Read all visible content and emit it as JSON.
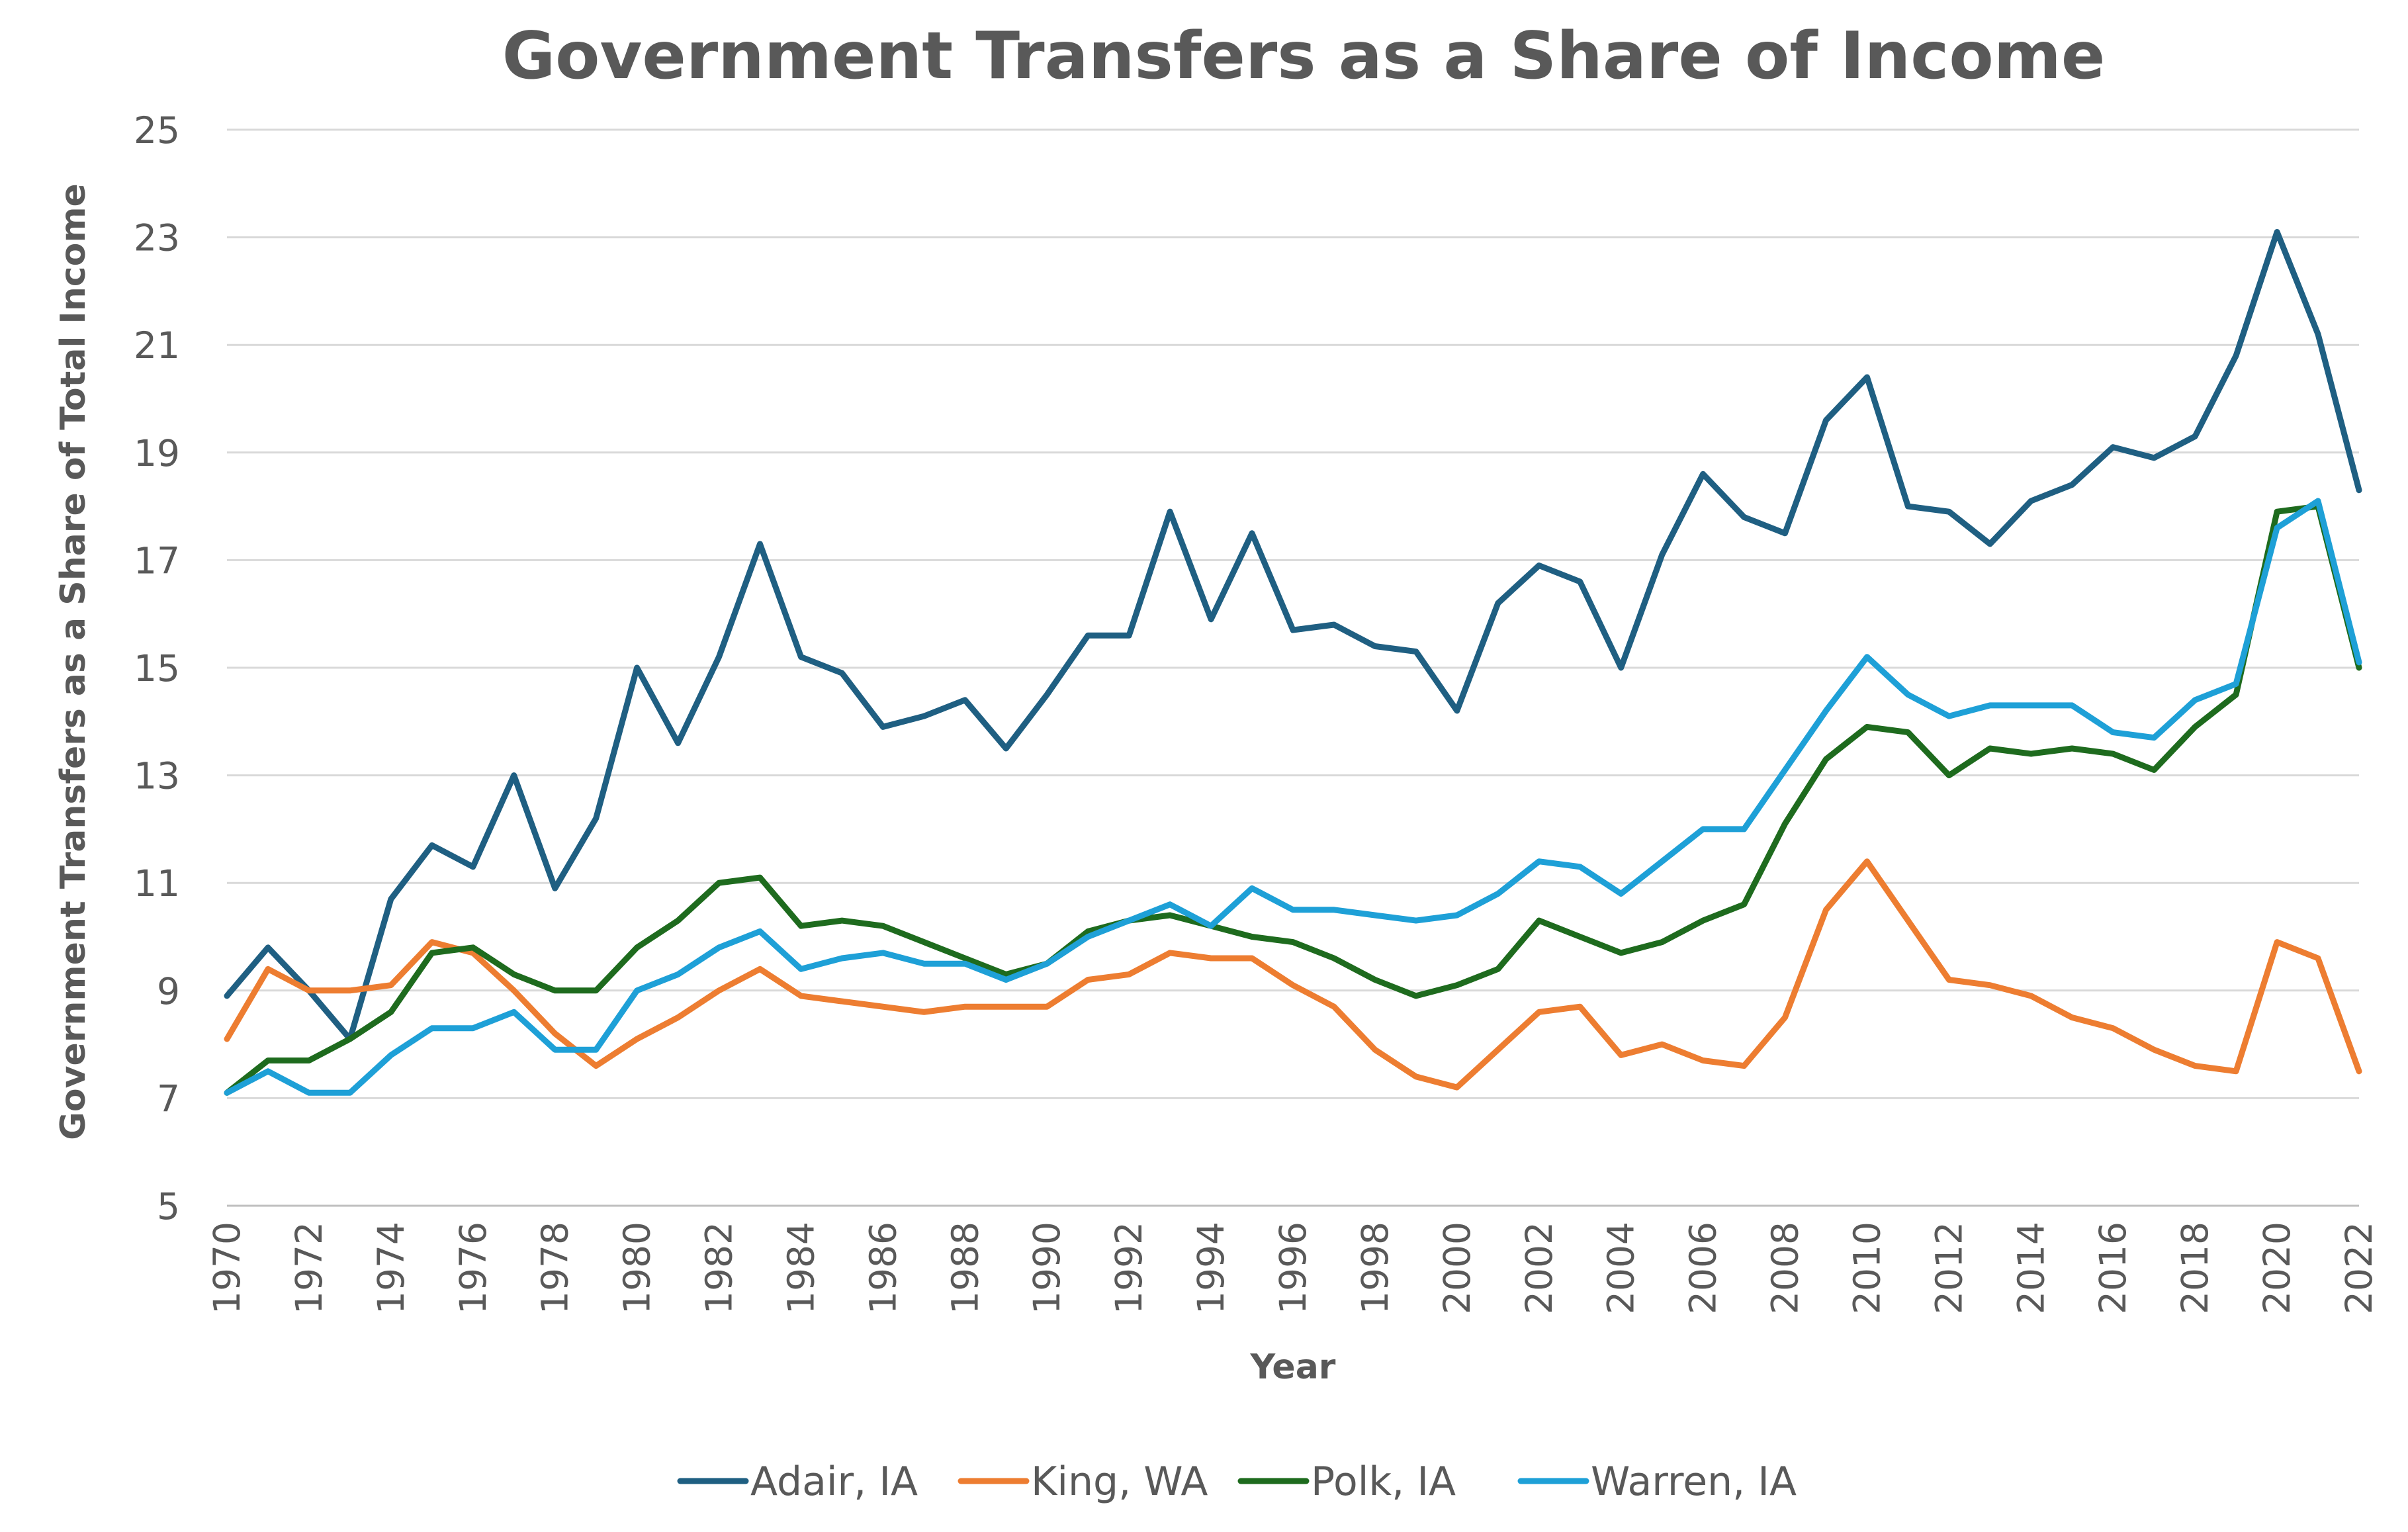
{
  "chart_data": {
    "type": "line",
    "title": "Government Transfers as a Share of Income",
    "xlabel": "Year",
    "ylabel": "Government Transfers as a Share of Total Income",
    "ylim": [
      5,
      25
    ],
    "yticks": [
      "5",
      "7",
      "9",
      "11",
      "13",
      "15",
      "17",
      "19",
      "21",
      "23",
      "25"
    ],
    "xticks": [
      "1970",
      "1972",
      "1974",
      "1976",
      "1978",
      "1980",
      "1982",
      "1984",
      "1986",
      "1988",
      "1990",
      "1992",
      "1994",
      "1996",
      "1998",
      "2000",
      "2002",
      "2004",
      "2006",
      "2008",
      "2010",
      "2012",
      "2014",
      "2016",
      "2018",
      "2020",
      "2022"
    ],
    "grid": true,
    "legend_position": "bottom",
    "x": [
      1970,
      1971,
      1972,
      1973,
      1974,
      1975,
      1976,
      1977,
      1978,
      1979,
      1980,
      1981,
      1982,
      1983,
      1984,
      1985,
      1986,
      1987,
      1988,
      1989,
      1990,
      1991,
      1992,
      1993,
      1994,
      1995,
      1996,
      1997,
      1998,
      1999,
      2000,
      2001,
      2002,
      2003,
      2004,
      2005,
      2006,
      2007,
      2008,
      2009,
      2010,
      2011,
      2012,
      2013,
      2014,
      2015,
      2016,
      2017,
      2018,
      2019,
      2020,
      2021,
      2022
    ],
    "series": [
      {
        "name": "Adair, IA",
        "color": "#1f5f82",
        "values": [
          8.9,
          9.8,
          9.0,
          8.1,
          10.7,
          11.7,
          11.3,
          13.0,
          10.9,
          12.2,
          15.0,
          13.6,
          15.2,
          17.3,
          15.2,
          14.9,
          13.9,
          14.1,
          14.4,
          13.5,
          14.5,
          15.6,
          15.6,
          17.9,
          15.9,
          17.5,
          15.7,
          15.8,
          15.4,
          15.3,
          14.2,
          16.2,
          16.9,
          16.6,
          15.0,
          17.1,
          18.6,
          17.8,
          17.5,
          19.6,
          20.4,
          18.0,
          17.9,
          17.3,
          18.1,
          18.4,
          19.1,
          18.9,
          19.3,
          20.8,
          23.1,
          21.2,
          18.3
        ]
      },
      {
        "name": "King, WA",
        "color": "#ed7d31",
        "values": [
          8.1,
          9.4,
          9.0,
          9.0,
          9.1,
          9.9,
          9.7,
          9.0,
          8.2,
          7.6,
          8.1,
          8.5,
          9.0,
          9.4,
          8.9,
          8.8,
          8.7,
          8.6,
          8.7,
          8.7,
          8.7,
          9.2,
          9.3,
          9.7,
          9.6,
          9.6,
          9.1,
          8.7,
          7.9,
          7.4,
          7.2,
          7.9,
          8.6,
          8.7,
          7.8,
          8.0,
          7.7,
          7.6,
          8.5,
          10.5,
          11.4,
          10.3,
          9.2,
          9.1,
          8.9,
          8.5,
          8.3,
          7.9,
          7.6,
          7.5,
          9.9,
          9.6,
          7.5
        ]
      },
      {
        "name": "Polk, IA",
        "color": "#1e6b1e",
        "values": [
          7.1,
          7.7,
          7.7,
          8.1,
          8.6,
          9.7,
          9.8,
          9.3,
          9.0,
          9.0,
          9.8,
          10.3,
          11.0,
          11.1,
          10.2,
          10.3,
          10.2,
          9.9,
          9.6,
          9.3,
          9.5,
          10.1,
          10.3,
          10.4,
          10.2,
          10.0,
          9.9,
          9.6,
          9.2,
          8.9,
          9.1,
          9.4,
          10.3,
          10.0,
          9.7,
          9.9,
          10.3,
          10.6,
          12.1,
          13.3,
          13.9,
          13.8,
          13.0,
          13.5,
          13.4,
          13.5,
          13.4,
          13.1,
          13.9,
          14.5,
          17.9,
          18.0,
          15.0
        ]
      },
      {
        "name": "Warren, IA",
        "color": "#1ea0d7",
        "values": [
          7.1,
          7.5,
          7.1,
          7.1,
          7.8,
          8.3,
          8.3,
          8.6,
          7.9,
          7.9,
          9.0,
          9.3,
          9.8,
          10.1,
          9.4,
          9.6,
          9.7,
          9.5,
          9.5,
          9.2,
          9.5,
          10.0,
          10.3,
          10.6,
          10.2,
          10.9,
          10.5,
          10.5,
          10.4,
          10.3,
          10.4,
          10.8,
          11.4,
          11.3,
          10.8,
          11.4,
          12.0,
          12.0,
          13.1,
          14.2,
          15.2,
          14.5,
          14.1,
          14.3,
          14.3,
          14.3,
          13.8,
          13.7,
          14.4,
          14.7,
          17.6,
          18.1,
          15.1
        ]
      }
    ]
  }
}
